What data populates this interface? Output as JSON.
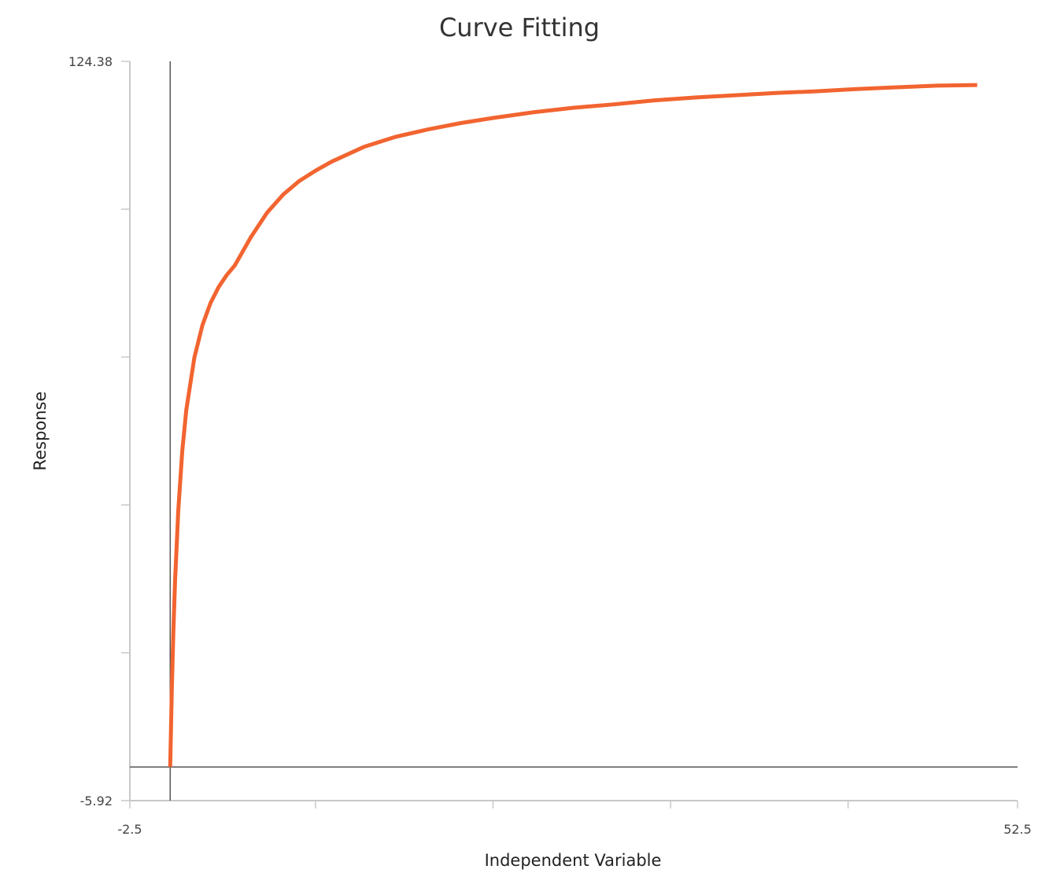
{
  "chart_data": {
    "type": "line",
    "title": "Curve Fitting",
    "xlabel": "Independent Variable",
    "ylabel": "Response",
    "xlim": [
      -2.5,
      52.5
    ],
    "ylim": [
      -5.92,
      124.38
    ],
    "x_tick_labels": [
      "-2.5",
      "52.5"
    ],
    "y_tick_labels": [
      "124.38",
      "-5.92"
    ],
    "x_minor_ticks": [
      -2.5,
      9.0,
      20.0,
      31.0,
      42.0,
      52.5
    ],
    "y_minor_ticks": [
      124.38,
      98.32,
      72.26,
      46.2,
      20.14,
      -5.92
    ],
    "reference_lines": {
      "x": 0,
      "y": 0
    },
    "grid": false,
    "legend": "none",
    "series": [
      {
        "color": "#f26430",
        "x": [
          0.0,
          0.1,
          0.2,
          0.3,
          0.5,
          0.75,
          1,
          1.5,
          2,
          2.5,
          3,
          3.5,
          4,
          5,
          6,
          7,
          8,
          9,
          10,
          12,
          14,
          16,
          18,
          20,
          22.5,
          25,
          27.5,
          30,
          32.5,
          35,
          37.5,
          40,
          42.5,
          45,
          47.5,
          50
        ],
        "y": [
          0.0,
          13.6,
          24.2,
          32.7,
          45.2,
          55.8,
          63.0,
          72.2,
          77.9,
          81.8,
          84.6,
          86.7,
          88.4,
          93.4,
          97.7,
          100.9,
          103.3,
          105.1,
          106.7,
          109.3,
          111.1,
          112.4,
          113.5,
          114.4,
          115.4,
          116.2,
          116.8,
          117.5,
          118.0,
          118.4,
          118.8,
          119.1,
          119.5,
          119.8,
          120.1,
          120.2
        ]
      }
    ],
    "colors": {
      "axis": "#c8c8c8",
      "reference": "#555555",
      "text": "#333333"
    }
  }
}
